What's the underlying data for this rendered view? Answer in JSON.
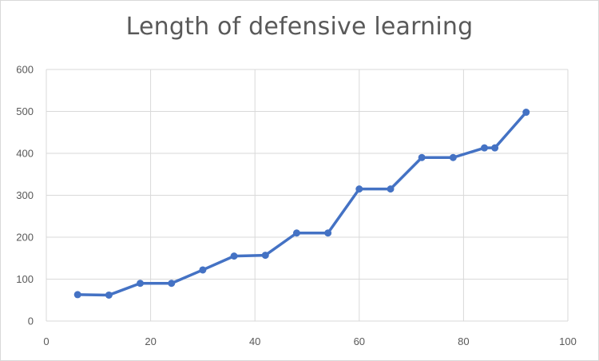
{
  "chart_data": {
    "type": "line",
    "title": "Length of defensive learning",
    "xlabel": "",
    "ylabel": "",
    "xlim": [
      0,
      100
    ],
    "ylim": [
      0,
      600
    ],
    "xticks": [
      0,
      20,
      40,
      60,
      80,
      100
    ],
    "yticks": [
      0,
      100,
      200,
      300,
      400,
      500,
      600
    ],
    "grid": true,
    "legend": "none",
    "series": [
      {
        "color": "#4472c4",
        "points": [
          [
            6,
            63
          ],
          [
            12,
            62
          ],
          [
            18,
            90
          ],
          [
            24,
            90
          ],
          [
            30,
            122
          ],
          [
            36,
            155
          ],
          [
            42,
            157
          ],
          [
            48,
            210
          ],
          [
            54,
            210
          ],
          [
            60,
            315
          ],
          [
            66,
            315
          ],
          [
            72,
            390
          ],
          [
            78,
            390
          ],
          [
            84,
            413
          ],
          [
            86,
            413
          ],
          [
            92,
            498
          ]
        ]
      }
    ]
  }
}
